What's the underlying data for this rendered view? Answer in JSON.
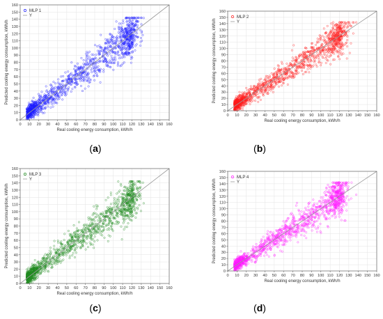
{
  "chart_data": [
    {
      "type": "scatter",
      "panel_label": "a",
      "xlabel": "Real cooling energy consumption, kWh/h",
      "ylabel": "Predicted cooling energy consumption, kWh/h",
      "xlim": [
        0,
        160
      ],
      "ylim": [
        0,
        160
      ],
      "xticks": [
        0,
        10,
        20,
        30,
        40,
        50,
        60,
        70,
        80,
        90,
        100,
        110,
        120,
        130,
        140,
        150,
        160
      ],
      "yticks": [
        0,
        10,
        20,
        30,
        40,
        50,
        60,
        70,
        80,
        90,
        100,
        110,
        120,
        130,
        140,
        150,
        160
      ],
      "grid": true,
      "legend": "top-left",
      "series": [
        {
          "name": "MLP 1",
          "color": "#1a1aff",
          "marker": "open-circle",
          "cloud": [
            {
              "x": 10,
              "y": 10,
              "weight": 0.3
            },
            {
              "x": 125,
              "y": 122,
              "weight": 0.2
            },
            {
              "x": 65,
              "y": 65,
              "weight": 0.5
            }
          ]
        },
        {
          "name": "Y",
          "color": "#999999",
          "line": [
            [
              0,
              0
            ],
            [
              160,
              160
            ]
          ]
        }
      ]
    },
    {
      "type": "scatter",
      "panel_label": "b",
      "xlabel": "Real cooling energy consumption, kWh/h",
      "ylabel": "Predicted cooling energy consumption, kWh/h",
      "xlim": [
        0,
        160
      ],
      "ylim": [
        0,
        160
      ],
      "xticks": [
        0,
        10,
        20,
        30,
        40,
        50,
        60,
        70,
        80,
        90,
        100,
        110,
        120,
        130,
        140,
        150,
        160
      ],
      "yticks": [
        0,
        10,
        20,
        30,
        40,
        50,
        60,
        70,
        80,
        90,
        100,
        110,
        120,
        130,
        140,
        150,
        160
      ],
      "grid": true,
      "legend": "top-left",
      "series": [
        {
          "name": "MLP 2",
          "color": "#ff1a1a",
          "marker": "open-circle",
          "cloud": [
            {
              "x": 10,
              "y": 10,
              "weight": 0.3
            },
            {
              "x": 125,
              "y": 122,
              "weight": 0.2
            },
            {
              "x": 65,
              "y": 65,
              "weight": 0.5
            }
          ]
        },
        {
          "name": "Y",
          "color": "#999999",
          "line": [
            [
              0,
              0
            ],
            [
              160,
              160
            ]
          ]
        }
      ]
    },
    {
      "type": "scatter",
      "panel_label": "c",
      "xlabel": "Real cooling energy consumption, kWh/h",
      "ylabel": "Predicted cooling energy consumption, kWh/h",
      "xlim": [
        0,
        160
      ],
      "ylim": [
        0,
        160
      ],
      "xticks": [
        0,
        10,
        20,
        30,
        40,
        50,
        60,
        70,
        80,
        90,
        100,
        110,
        120,
        130,
        140,
        150,
        160
      ],
      "yticks": [
        0,
        10,
        20,
        30,
        40,
        50,
        60,
        70,
        80,
        90,
        100,
        110,
        120,
        130,
        140,
        150,
        160
      ],
      "grid": true,
      "legend": "top-left",
      "series": [
        {
          "name": "MLP 3",
          "color": "#1f8a1f",
          "marker": "open-circle",
          "cloud": [
            {
              "x": 10,
              "y": 10,
              "weight": 0.3
            },
            {
              "x": 125,
              "y": 122,
              "weight": 0.2
            },
            {
              "x": 65,
              "y": 65,
              "weight": 0.5
            }
          ]
        },
        {
          "name": "Y",
          "color": "#999999",
          "line": [
            [
              0,
              0
            ],
            [
              160,
              160
            ]
          ]
        }
      ]
    },
    {
      "type": "scatter",
      "panel_label": "d",
      "xlabel": "Real cooling energy consumption, kWh/h",
      "ylabel": "Predicted cooling energy consumption, kWh/h",
      "xlim": [
        0,
        160
      ],
      "ylim": [
        0,
        160
      ],
      "xticks": [
        0,
        10,
        20,
        30,
        40,
        50,
        60,
        70,
        80,
        90,
        100,
        110,
        120,
        130,
        140,
        150,
        160
      ],
      "yticks": [
        0,
        10,
        20,
        30,
        40,
        50,
        60,
        70,
        80,
        90,
        100,
        110,
        120,
        130,
        140,
        150,
        160
      ],
      "grid": true,
      "legend": "top-left",
      "series": [
        {
          "name": "MLP 4",
          "color": "#ff1aff",
          "marker": "open-circle",
          "cloud": [
            {
              "x": 10,
              "y": 10,
              "weight": 0.3
            },
            {
              "x": 125,
              "y": 122,
              "weight": 0.2
            },
            {
              "x": 65,
              "y": 65,
              "weight": 0.5
            }
          ]
        },
        {
          "name": "Y",
          "color": "#999999",
          "line": [
            [
              0,
              0
            ],
            [
              160,
              160
            ]
          ]
        }
      ]
    }
  ]
}
